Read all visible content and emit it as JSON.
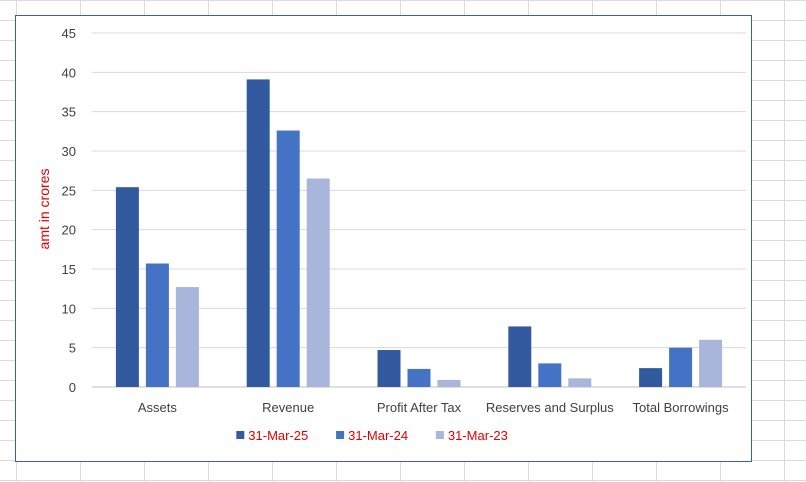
{
  "chart_data": {
    "type": "bar",
    "categories": [
      "Assets",
      "Revenue",
      "Profit After Tax",
      "Reserves and Surplus",
      "Total Borrowings"
    ],
    "series": [
      {
        "name": "31-Mar-25",
        "values": [
          25.4,
          39.1,
          4.7,
          7.7,
          2.4
        ],
        "color": "#335a9f"
      },
      {
        "name": "31-Mar-24",
        "values": [
          15.7,
          32.6,
          2.3,
          3.0,
          5.0
        ],
        "color": "#4472c4"
      },
      {
        "name": "31-Mar-23",
        "values": [
          12.7,
          26.5,
          0.9,
          1.1,
          6.0
        ],
        "color": "#a9b6db"
      }
    ],
    "title": "",
    "xlabel": "",
    "ylabel": "amt in crores",
    "ylim": [
      0,
      45
    ],
    "yticks": [
      0,
      5,
      10,
      15,
      20,
      25,
      30,
      35,
      40,
      45
    ],
    "grid": true,
    "legend": "bottom-center"
  }
}
